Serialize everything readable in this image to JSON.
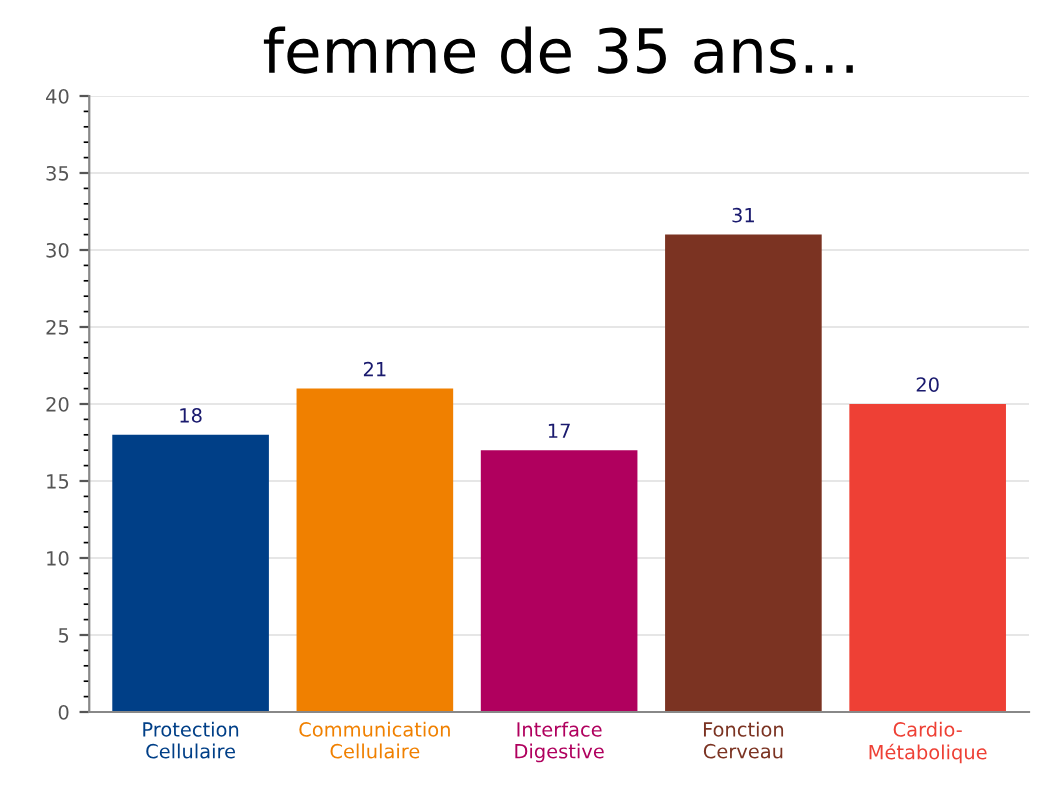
{
  "chart_data": {
    "type": "bar",
    "title": "femme de 35 ans…",
    "categories": [
      "Protection\nCellulaire",
      "Communication\nCellulaire",
      "Interface\nDigestive",
      "Fonction\nCerveau",
      "Cardio-\nMétabolique"
    ],
    "values": [
      18,
      21,
      17,
      31,
      20
    ],
    "colors": [
      "#003f87",
      "#f08000",
      "#b0005e",
      "#7b3322",
      "#ee4035"
    ],
    "ylim": [
      0,
      40
    ],
    "yticks": [
      0,
      5,
      10,
      15,
      20,
      25,
      30,
      35,
      40
    ],
    "grid": "y",
    "data_labels": true
  }
}
